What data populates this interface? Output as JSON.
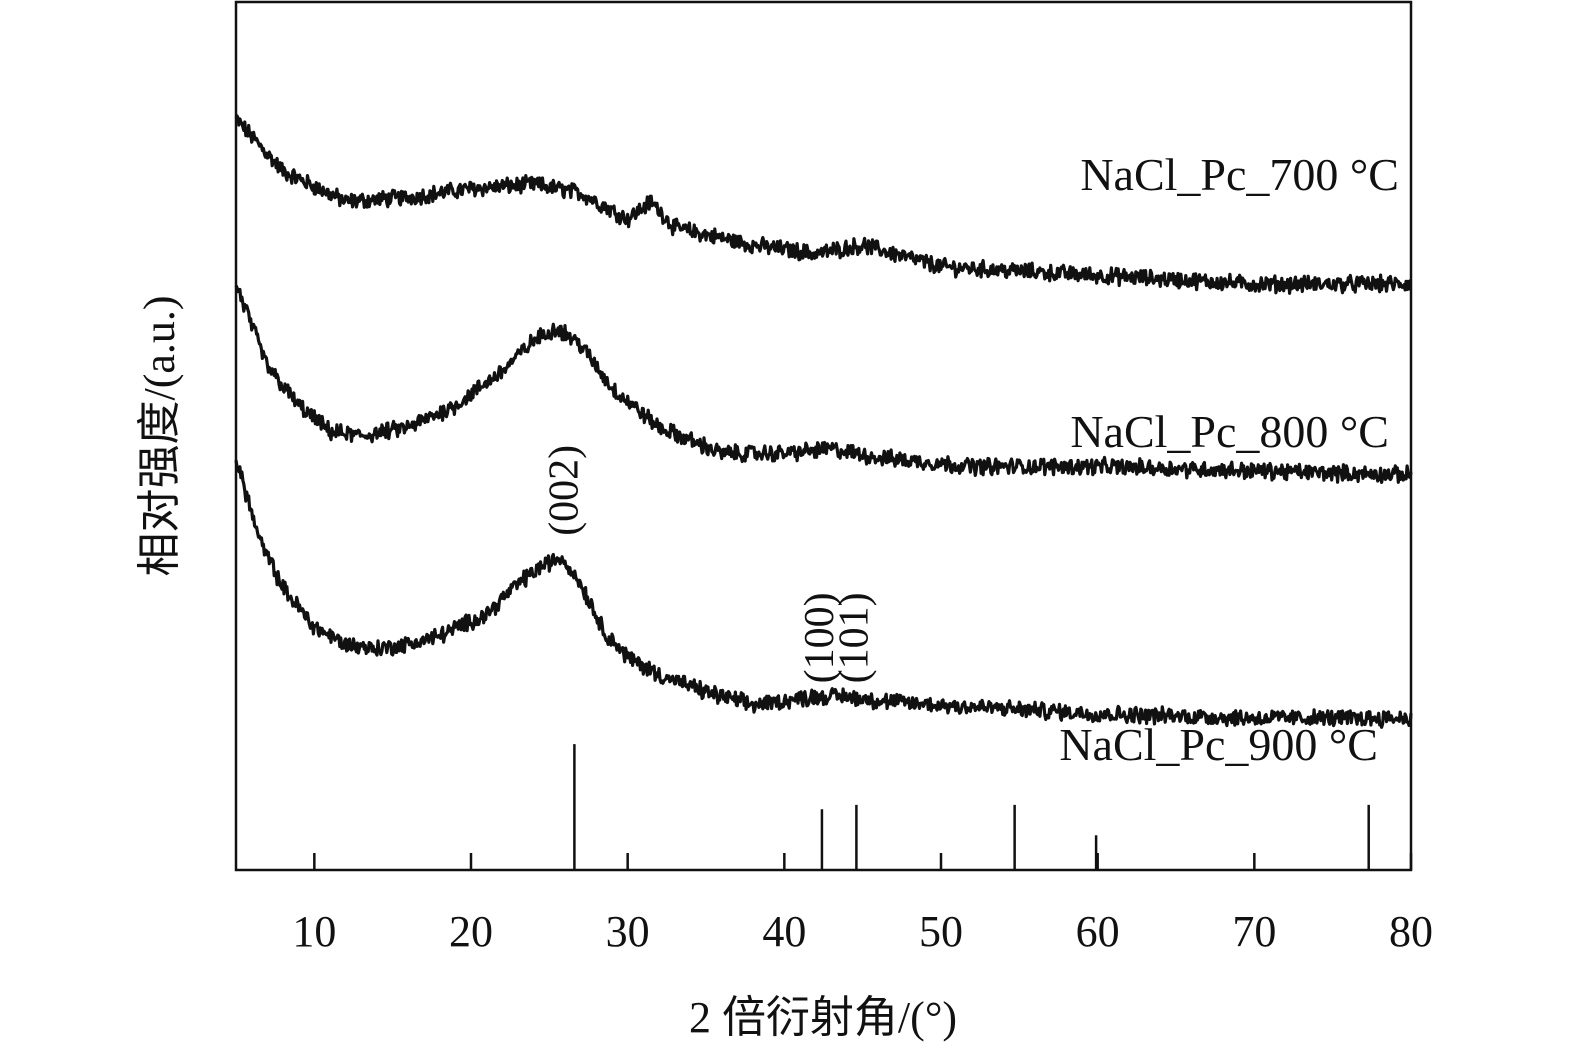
{
  "chart_data": {
    "type": "line",
    "title": "",
    "xlabel": "2 倍衍射角/(°)",
    "ylabel": "相对强度/(a.u.)",
    "xlim": [
      5,
      80
    ],
    "x_ticks": [
      10,
      20,
      30,
      40,
      50,
      60,
      70,
      80
    ],
    "y_ticks": [],
    "series": [
      {
        "name": "NaCl_Pc_700 °C",
        "x": [
          5,
          8,
          12,
          16,
          20,
          24,
          27,
          30,
          31.5,
          33,
          38,
          42,
          45,
          50,
          60,
          70,
          80
        ],
        "y": [
          2.33,
          2.21,
          2.14,
          2.15,
          2.17,
          2.18,
          2.16,
          2.1,
          2.14,
          2.08,
          2.04,
          2.02,
          2.04,
          1.99,
          1.97,
          1.95,
          1.95
        ]
      },
      {
        "name": "NaCl_Pc_800 °C",
        "x": [
          5,
          7,
          9,
          11,
          13,
          16,
          19,
          22,
          24,
          25.5,
          27,
          29,
          32,
          36,
          40,
          43,
          46,
          52,
          60,
          70,
          80
        ],
        "y": [
          1.95,
          1.76,
          1.67,
          1.61,
          1.6,
          1.62,
          1.67,
          1.75,
          1.82,
          1.85,
          1.81,
          1.71,
          1.62,
          1.56,
          1.56,
          1.57,
          1.55,
          1.53,
          1.53,
          1.52,
          1.51
        ]
      },
      {
        "name": "NaCl_Pc_900 °C",
        "x": [
          5,
          6.5,
          8,
          10,
          12,
          14,
          16,
          18,
          21,
          23,
          24.5,
          25.8,
          27,
          28.5,
          30,
          32,
          35,
          38,
          40,
          42,
          44,
          46,
          50,
          55,
          60,
          70,
          80
        ],
        "y": [
          1.55,
          1.36,
          1.25,
          1.16,
          1.12,
          1.11,
          1.12,
          1.14,
          1.19,
          1.26,
          1.3,
          1.32,
          1.26,
          1.15,
          1.09,
          1.05,
          1.01,
          0.98,
          0.99,
          1.0,
          1.0,
          0.99,
          0.98,
          0.97,
          0.96,
          0.95,
          0.95
        ]
      }
    ],
    "peak_annotations": [
      {
        "label": "(002)",
        "x": 25.9,
        "y": 1.37
      },
      {
        "label": "(100)",
        "x": 42.2,
        "y": 1.03
      },
      {
        "label": "(101)",
        "x": 44.4,
        "y": 1.03
      }
    ],
    "reference_lines": [
      {
        "x": 26.6,
        "height": 0.29
      },
      {
        "x": 42.4,
        "height": 0.14
      },
      {
        "x": 44.6,
        "height": 0.15
      },
      {
        "x": 54.7,
        "height": 0.15
      },
      {
        "x": 59.9,
        "height": 0.08
      },
      {
        "x": 77.3,
        "height": 0.15
      }
    ],
    "ylim": [
      0.6,
      2.6
    ],
    "grid": false,
    "legend": "none (series labeled inline at right)"
  }
}
